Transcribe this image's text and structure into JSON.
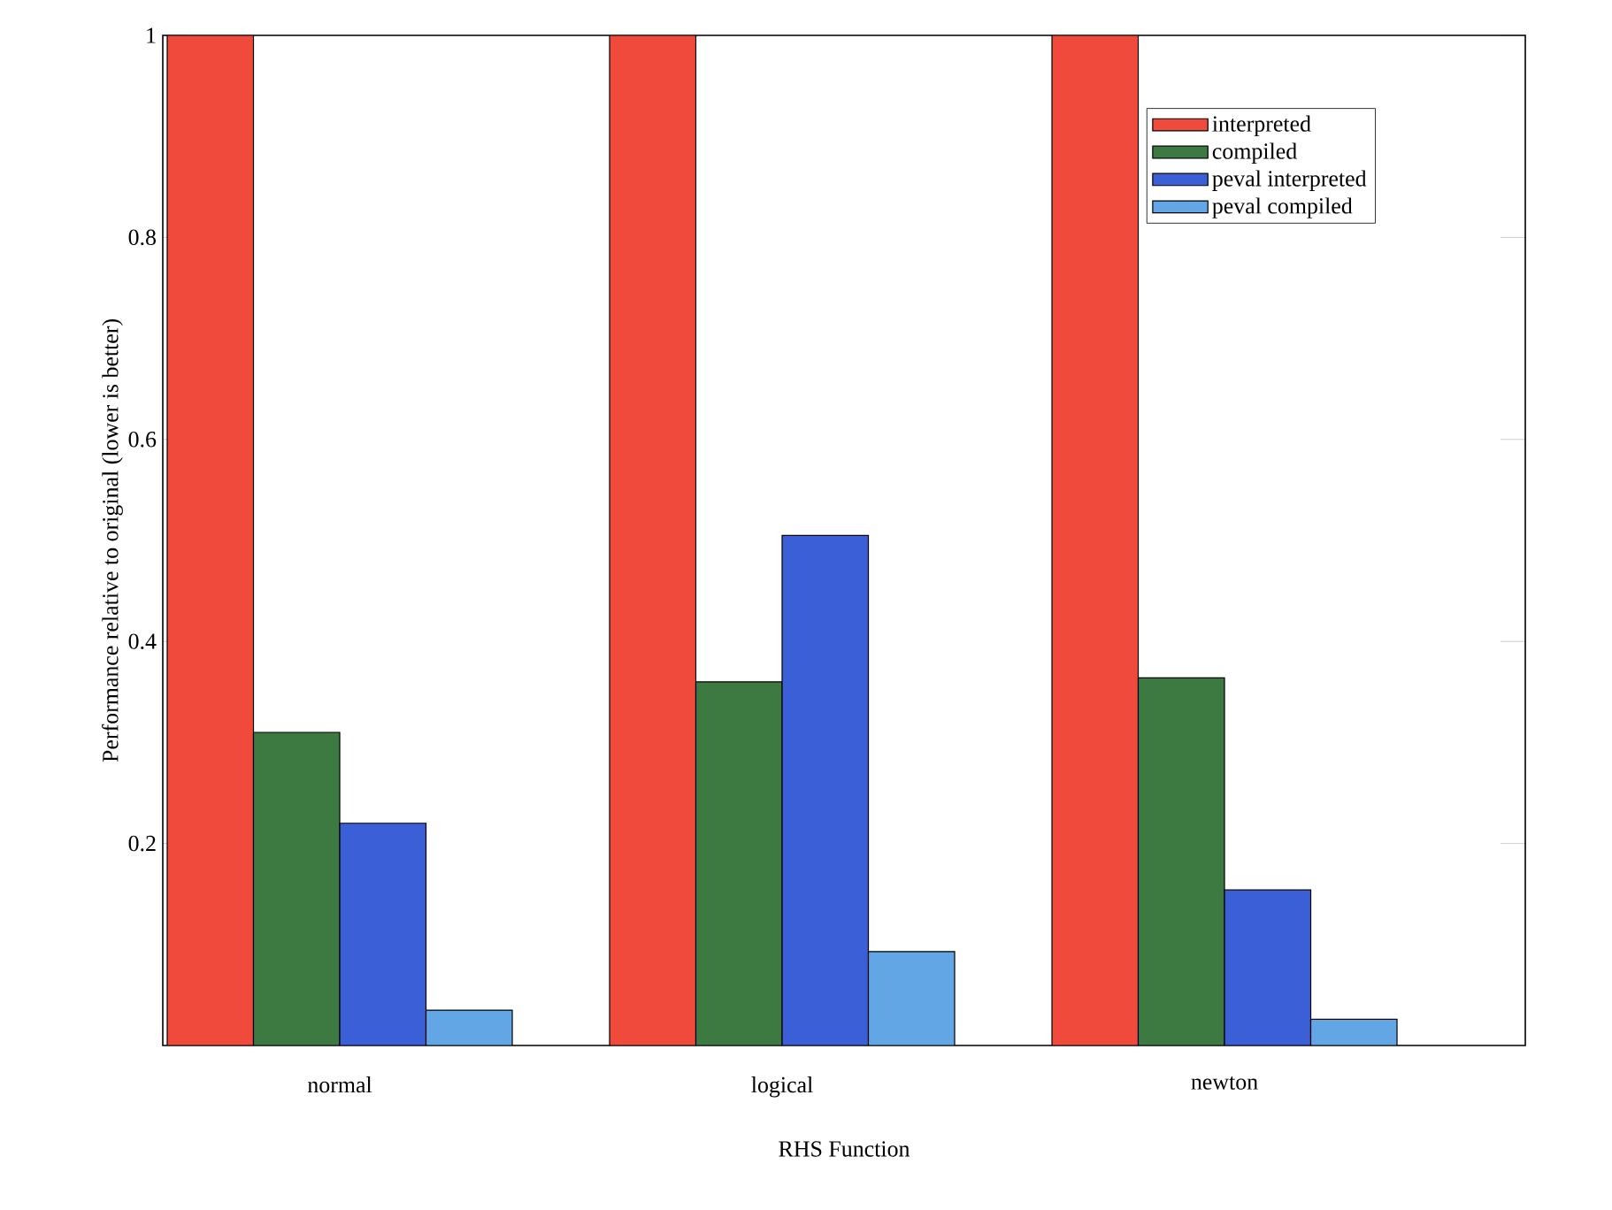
{
  "chart_data": {
    "type": "bar",
    "xlabel": "RHS Function",
    "ylabel": "Performance relative to original (lower is better)",
    "categories": [
      "normal",
      "logical",
      "newton"
    ],
    "series": [
      {
        "name": "interpreted",
        "color": "#f04a3c",
        "values": [
          1.0,
          1.0,
          1.0
        ]
      },
      {
        "name": "compiled",
        "color": "#3c7a42",
        "values": [
          0.31,
          0.36,
          0.364
        ]
      },
      {
        "name": "peval interpreted",
        "color": "#3a5fd6",
        "values": [
          0.22,
          0.505,
          0.154
        ]
      },
      {
        "name": "peval compiled",
        "color": "#62a6e6",
        "values": [
          0.035,
          0.093,
          0.026
        ]
      }
    ],
    "ylim": [
      0,
      1
    ],
    "yticks": [
      0.2,
      0.4,
      0.6,
      0.8,
      1
    ],
    "legend": "top right",
    "grid": false
  }
}
